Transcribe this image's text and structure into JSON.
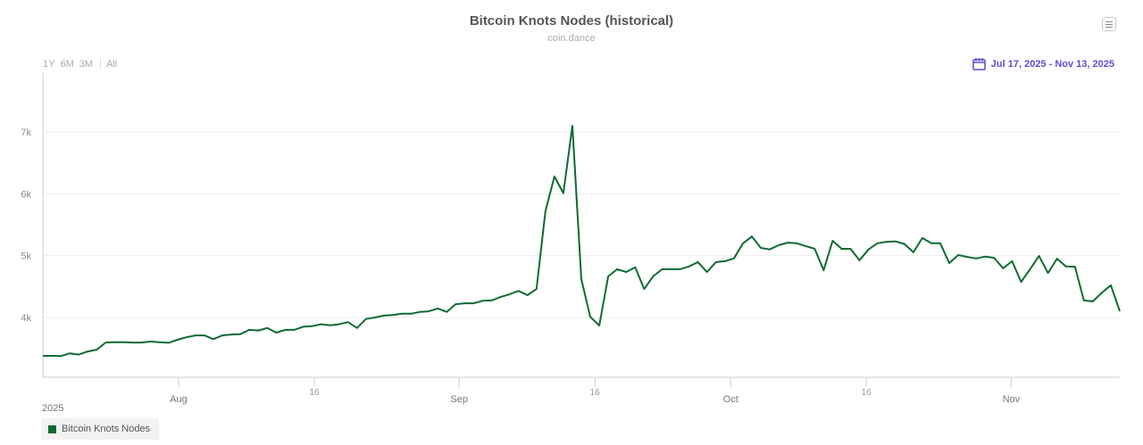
{
  "header": {
    "title": "Bitcoin Knots Nodes (historical)",
    "subtitle": "coin.dance",
    "menu_icon": "hamburger-menu-icon"
  },
  "range_selector": {
    "buttons": [
      "1Y",
      "6M",
      "3M",
      "All"
    ],
    "date_range": "Jul 17, 2025 - Nov 13, 2025",
    "date_icon": "calendar-icon"
  },
  "colors": {
    "series": "#0e6b30",
    "date_range_text": "#5b4fcf",
    "grid": "#eeeeee",
    "axis": "#dddddd"
  },
  "axis": {
    "year_label": "2025"
  },
  "legend": {
    "label": "Bitcoin Knots Nodes"
  },
  "chart_data": {
    "type": "line",
    "title": "Bitcoin Knots Nodes (historical)",
    "subtitle": "coin.dance",
    "xlabel": "",
    "ylabel": "",
    "x_start": "2025-07-17",
    "x_end": "2025-11-13",
    "x_ticks": [
      {
        "label": "Aug",
        "date": "2025-08-01"
      },
      {
        "label": "16",
        "date": "2025-08-16"
      },
      {
        "label": "Sep",
        "date": "2025-09-01"
      },
      {
        "label": "16",
        "date": "2025-09-16"
      },
      {
        "label": "Oct",
        "date": "2025-10-01"
      },
      {
        "label": "16",
        "date": "2025-10-16"
      },
      {
        "label": "Nov",
        "date": "2025-11-01"
      }
    ],
    "y_ticks": [
      "4k",
      "5k",
      "6k",
      "7k"
    ],
    "y_tick_values": [
      4000,
      5000,
      6000,
      7000
    ],
    "ylim": [
      3030,
      8100
    ],
    "grid": true,
    "legend_position": "bottom-left",
    "series": [
      {
        "name": "Bitcoin Knots Nodes",
        "color": "#0e6b30",
        "values": [
          3380,
          3380,
          3375,
          3420,
          3400,
          3450,
          3480,
          3595,
          3600,
          3600,
          3595,
          3595,
          3610,
          3600,
          3590,
          3640,
          3680,
          3710,
          3710,
          3650,
          3710,
          3725,
          3730,
          3800,
          3790,
          3830,
          3755,
          3800,
          3800,
          3850,
          3860,
          3890,
          3875,
          3890,
          3925,
          3830,
          3975,
          4000,
          4030,
          4040,
          4060,
          4060,
          4090,
          4100,
          4145,
          4090,
          4215,
          4230,
          4230,
          4270,
          4275,
          4330,
          4375,
          4430,
          4360,
          4460,
          5720,
          6280,
          6010,
          7100,
          4620,
          4010,
          3870,
          4665,
          4780,
          4735,
          4810,
          4460,
          4665,
          4780,
          4780,
          4780,
          4825,
          4895,
          4735,
          4895,
          4910,
          4955,
          5195,
          5310,
          5125,
          5100,
          5170,
          5210,
          5200,
          5155,
          5110,
          4765,
          5240,
          5110,
          5110,
          4925,
          5100,
          5200,
          5225,
          5230,
          5190,
          5055,
          5285,
          5200,
          5200,
          4880,
          5010,
          4980,
          4955,
          4985,
          4965,
          4795,
          4910,
          4575,
          4780,
          4995,
          4720,
          4950,
          4825,
          4820,
          4275,
          4260,
          4400,
          4520,
          4100
        ]
      }
    ]
  }
}
